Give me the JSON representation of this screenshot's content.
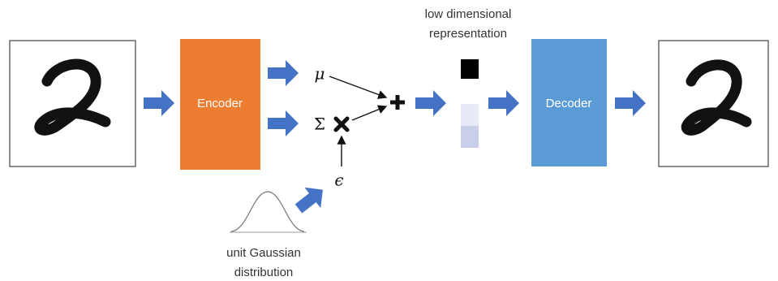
{
  "encoder": {
    "label": "Encoder"
  },
  "decoder": {
    "label": "Decoder"
  },
  "symbols": {
    "mu": "μ",
    "sigma": "Σ",
    "epsilon": "ϵ"
  },
  "latent": {
    "caption": [
      "low dimensional",
      "representation"
    ]
  },
  "noise": {
    "caption": [
      "unit Gaussian",
      "distribution"
    ]
  }
}
